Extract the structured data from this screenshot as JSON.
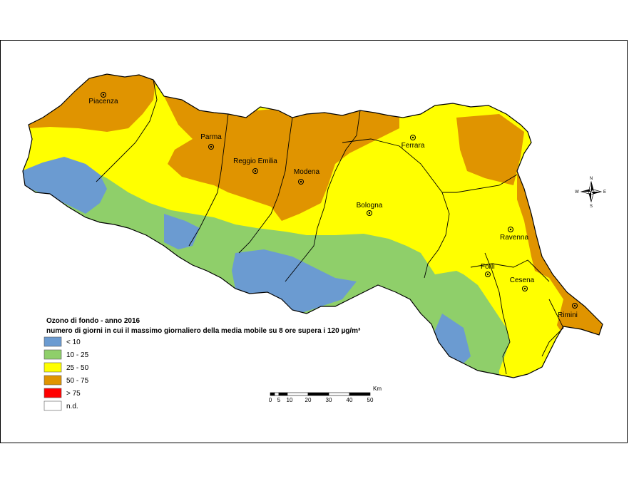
{
  "map": {
    "cities": [
      {
        "name": "Piacenza"
      },
      {
        "name": "Parma"
      },
      {
        "name": "Reggio Emilia"
      },
      {
        "name": "Modena"
      },
      {
        "name": "Ferrara"
      },
      {
        "name": "Bologna"
      },
      {
        "name": "Ravenna"
      },
      {
        "name": "Forlì"
      },
      {
        "name": "Cesena"
      },
      {
        "name": "Rimini"
      }
    ],
    "colors": {
      "lt10": "#6b9bd1",
      "10_25": "#8fcf6a",
      "25_50": "#ffff00",
      "50_75": "#e09400",
      "gt75": "#ff0000",
      "nd": "#ffffff"
    }
  },
  "legend": {
    "title": "Ozono di fondo - anno 2016",
    "subtitle": "numero di giorni in cui il massimo giornaliero della media mobile su 8 ore supera i 120 µg/m³",
    "items": [
      {
        "label": "< 10",
        "color": "#6b9bd1"
      },
      {
        "label": "10 - 25",
        "color": "#8fcf6a"
      },
      {
        "label": "25 - 50",
        "color": "#ffff00"
      },
      {
        "label": "50 - 75",
        "color": "#e09400"
      },
      {
        "label": "> 75",
        "color": "#ff0000"
      },
      {
        "label": "n.d.",
        "color": "#ffffff"
      }
    ]
  },
  "scale_bar": {
    "unit": "Km",
    "ticks": [
      "0",
      "5",
      "10",
      "20",
      "30",
      "40",
      "50"
    ]
  },
  "compass": {
    "n": "N",
    "s": "S",
    "e": "E",
    "w": "W"
  }
}
